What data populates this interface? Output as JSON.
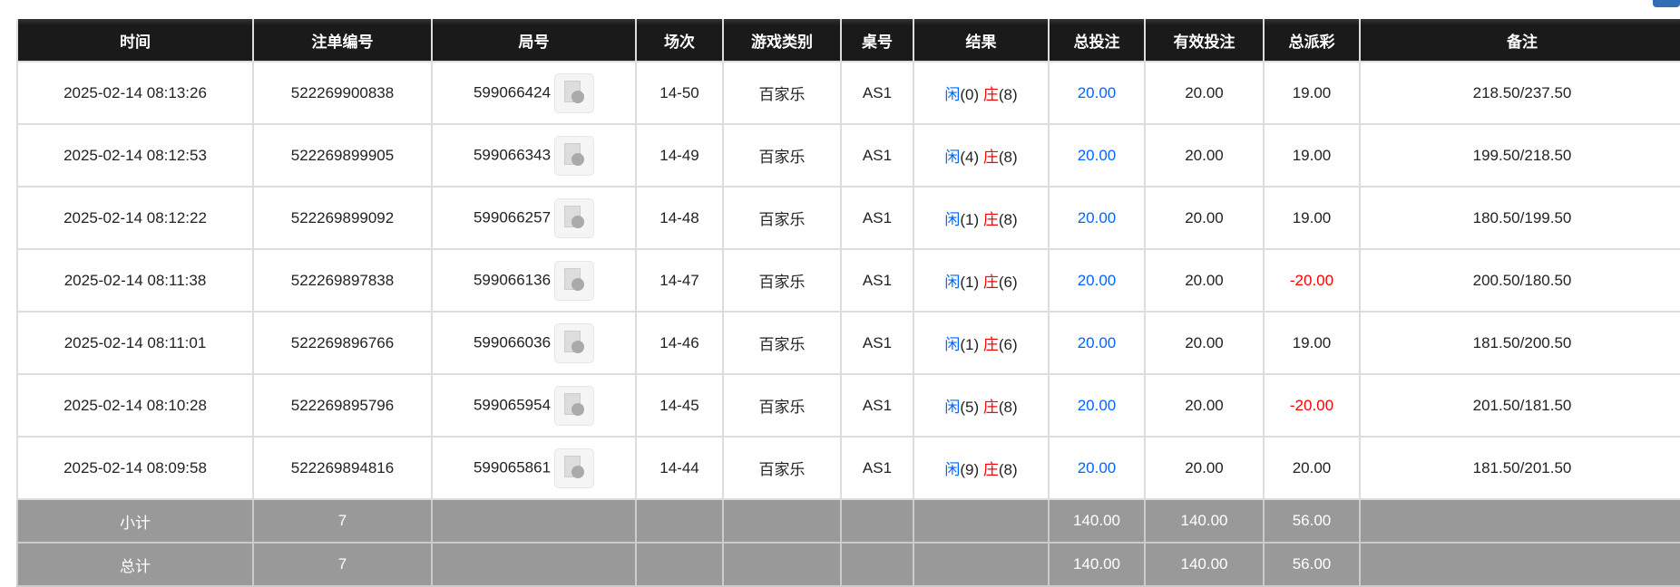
{
  "headers": [
    "时间",
    "注单编号",
    "局号",
    "场次",
    "游戏类别",
    "桌号",
    "结果",
    "总投注",
    "有效投注",
    "总派彩",
    "备注"
  ],
  "rows": [
    {
      "time": "2025-02-14 08:13:26",
      "bet_id": "522269900838",
      "round": "599066424",
      "session": "14-50",
      "game": "百家乐",
      "table": "AS1",
      "player": "闲",
      "player_pts": "(0)",
      "banker": "庄",
      "banker_pts": "(8)",
      "total_bet": "20.00",
      "valid_bet": "20.00",
      "payout": "19.00",
      "payout_negative": false,
      "note": "218.50/237.50"
    },
    {
      "time": "2025-02-14 08:12:53",
      "bet_id": "522269899905",
      "round": "599066343",
      "session": "14-49",
      "game": "百家乐",
      "table": "AS1",
      "player": "闲",
      "player_pts": "(4)",
      "banker": "庄",
      "banker_pts": "(8)",
      "total_bet": "20.00",
      "valid_bet": "20.00",
      "payout": "19.00",
      "payout_negative": false,
      "note": "199.50/218.50"
    },
    {
      "time": "2025-02-14 08:12:22",
      "bet_id": "522269899092",
      "round": "599066257",
      "session": "14-48",
      "game": "百家乐",
      "table": "AS1",
      "player": "闲",
      "player_pts": "(1)",
      "banker": "庄",
      "banker_pts": "(8)",
      "total_bet": "20.00",
      "valid_bet": "20.00",
      "payout": "19.00",
      "payout_negative": false,
      "note": "180.50/199.50"
    },
    {
      "time": "2025-02-14 08:11:38",
      "bet_id": "522269897838",
      "round": "599066136",
      "session": "14-47",
      "game": "百家乐",
      "table": "AS1",
      "player": "闲",
      "player_pts": "(1)",
      "banker": "庄",
      "banker_pts": "(6)",
      "total_bet": "20.00",
      "valid_bet": "20.00",
      "payout": "-20.00",
      "payout_negative": true,
      "note": "200.50/180.50"
    },
    {
      "time": "2025-02-14 08:11:01",
      "bet_id": "522269896766",
      "round": "599066036",
      "session": "14-46",
      "game": "百家乐",
      "table": "AS1",
      "player": "闲",
      "player_pts": "(1)",
      "banker": "庄",
      "banker_pts": "(6)",
      "total_bet": "20.00",
      "valid_bet": "20.00",
      "payout": "19.00",
      "payout_negative": false,
      "note": "181.50/200.50"
    },
    {
      "time": "2025-02-14 08:10:28",
      "bet_id": "522269895796",
      "round": "599065954",
      "session": "14-45",
      "game": "百家乐",
      "table": "AS1",
      "player": "闲",
      "player_pts": "(5)",
      "banker": "庄",
      "banker_pts": "(8)",
      "total_bet": "20.00",
      "valid_bet": "20.00",
      "payout": "-20.00",
      "payout_negative": true,
      "note": "201.50/181.50"
    },
    {
      "time": "2025-02-14 08:09:58",
      "bet_id": "522269894816",
      "round": "599065861",
      "session": "14-44",
      "game": "百家乐",
      "table": "AS1",
      "player": "闲",
      "player_pts": "(9)",
      "banker": "庄",
      "banker_pts": "(8)",
      "total_bet": "20.00",
      "valid_bet": "20.00",
      "payout": "20.00",
      "payout_negative": false,
      "note": "181.50/201.50"
    }
  ],
  "summary": [
    {
      "label": "小计",
      "count": "7",
      "total_bet": "140.00",
      "valid_bet": "140.00",
      "payout": "56.00"
    },
    {
      "label": "总计",
      "count": "7",
      "total_bet": "140.00",
      "valid_bet": "140.00",
      "payout": "56.00"
    }
  ],
  "colors": {
    "player": "#0066ff",
    "banker": "#ff0000",
    "negative": "#ff0000",
    "header_bg": "#1a1a1a",
    "summary_bg": "#999999"
  },
  "icons": {
    "replay": "video-file-icon"
  }
}
